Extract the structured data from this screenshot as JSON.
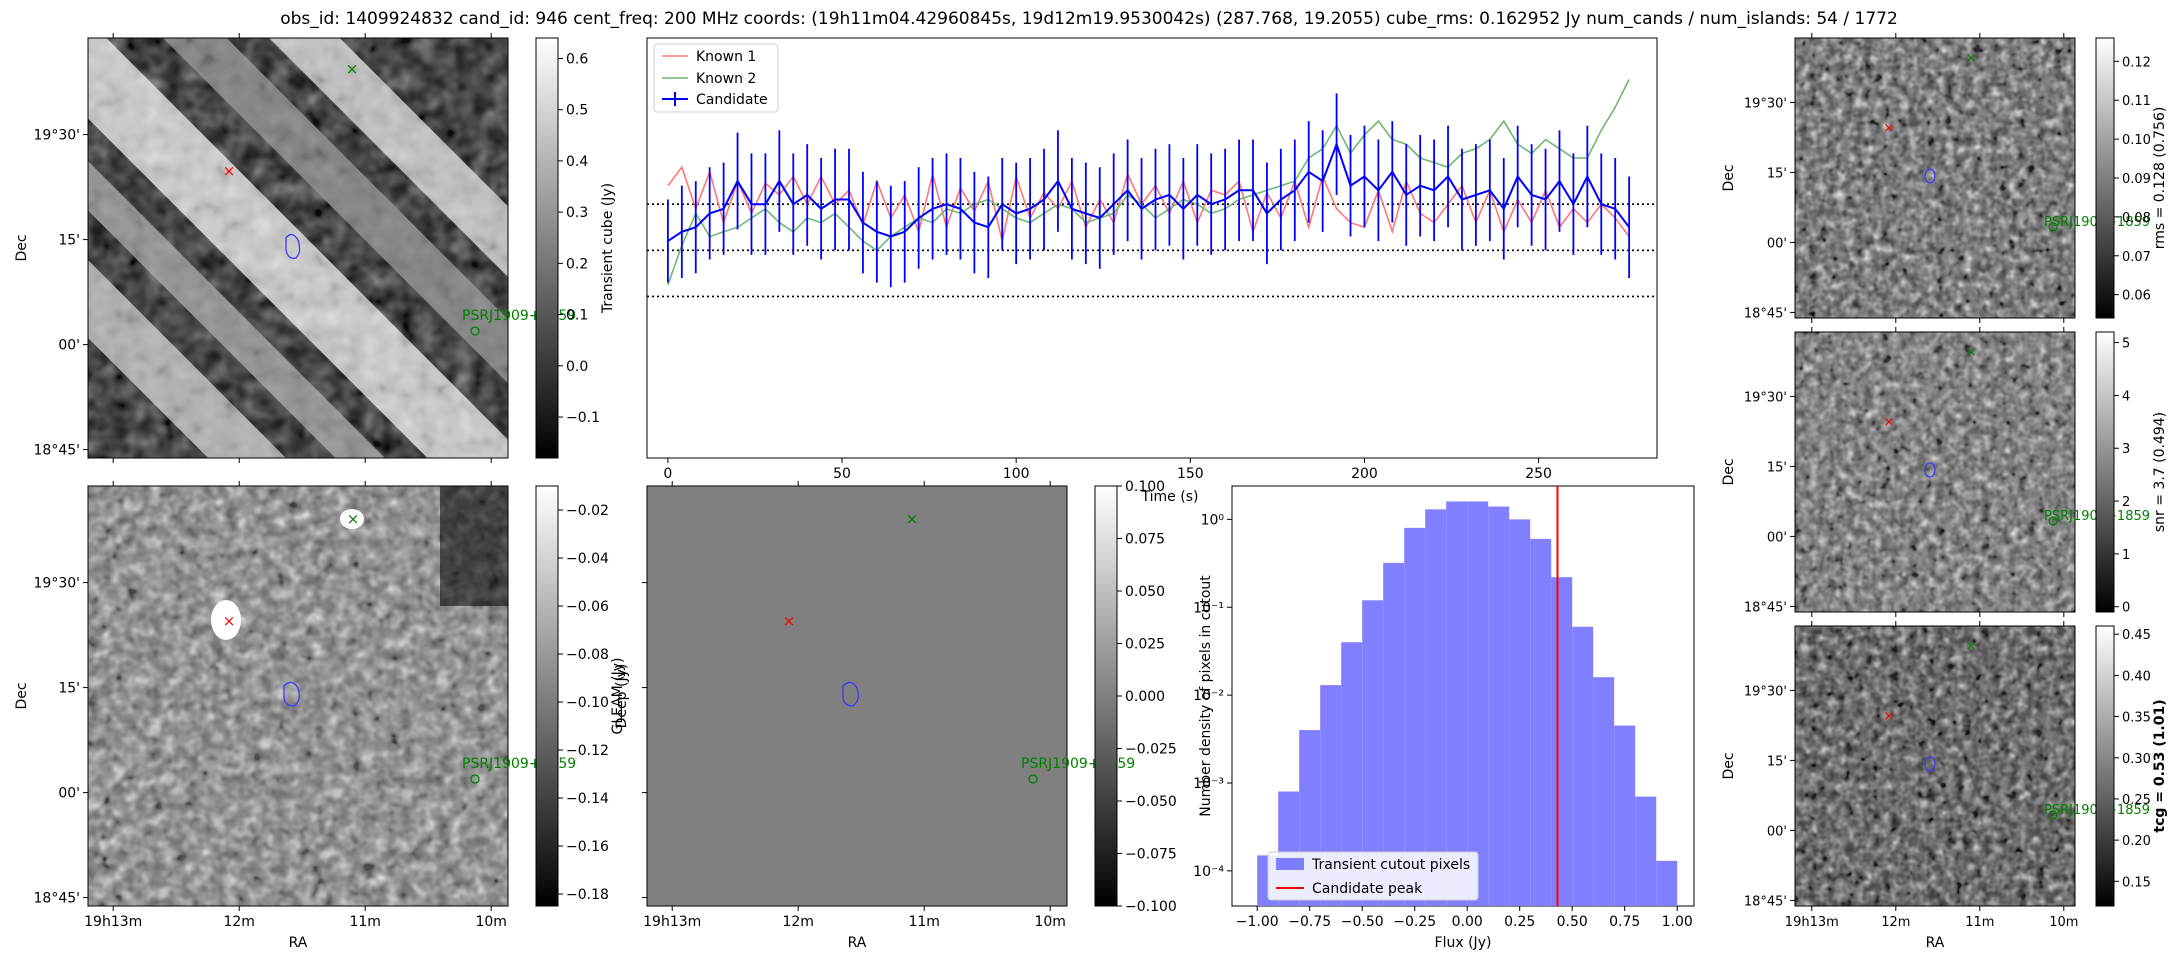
{
  "suptitle": "obs_id: 1409924832 cand_id: 946 cent_freq: 200 MHz coords: (19h11m04.42960845s, 19d12m19.9530042s) (287.768, 19.2055) cube_rms: 0.162952 Jy num_cands / num_islands: 54 / 1772",
  "colors": {
    "candidate": "#0000ff",
    "known1": "#ff7777",
    "known2": "#6fb86f",
    "red": "#ff0000",
    "green": "#008000",
    "hist": "#7f7fff"
  },
  "images": {
    "ra_ticks": [
      "19h13m",
      "12m",
      "11m",
      "10m"
    ],
    "dec_ticks": [
      "19°30'",
      "15'",
      "00'",
      "18°45'"
    ],
    "xlabel": "RA",
    "ylabel": "Dec",
    "source_label": "PSRJ1909+1859",
    "panel_transient": {
      "cbar_label": "Transient cube (Jy)",
      "cbar_range": [
        -0.18,
        0.64
      ],
      "cbar_ticks": [
        "0.6",
        "0.5",
        "0.4",
        "0.3",
        "0.2",
        "0.1",
        "0.0",
        "−0.1"
      ]
    },
    "panel_deep": {
      "cbar_label": "Deep (Jy)",
      "cbar_range": [
        -0.185,
        -0.01
      ],
      "cbar_ticks": [
        "−0.02",
        "−0.04",
        "−0.06",
        "−0.08",
        "−0.10",
        "−0.12",
        "−0.14",
        "−0.16",
        "−0.18"
      ]
    },
    "panel_gleam": {
      "cbar_label": "GLEAM (Jy)",
      "cbar_range": [
        -0.1,
        0.1
      ],
      "cbar_ticks": [
        "0.100",
        "0.075",
        "0.050",
        "0.025",
        "0.000",
        "−0.025",
        "−0.050",
        "−0.075",
        "−0.100"
      ]
    },
    "panel_rms": {
      "cbar_label": "rms = 0.128 (0.756)",
      "cbar_range": [
        0.054,
        0.126
      ],
      "cbar_ticks": [
        "0.12",
        "0.11",
        "0.10",
        "0.09",
        "0.08",
        "0.07",
        "0.06"
      ]
    },
    "panel_snr": {
      "cbar_label": "snr = 3.7 (0.494)",
      "cbar_range": [
        -0.1,
        5.2
      ],
      "cbar_ticks": [
        "5",
        "4",
        "3",
        "2",
        "1",
        "0"
      ]
    },
    "panel_tcg": {
      "cbar_label": "tcg = 0.53 (1.01)",
      "cbar_range": [
        0.12,
        0.46
      ],
      "cbar_ticks": [
        "0.45",
        "0.40",
        "0.35",
        "0.30",
        "0.25",
        "0.20",
        "0.15"
      ]
    }
  },
  "chart_data": [
    {
      "type": "line",
      "xlabel": "Time (s)",
      "ylabel": "",
      "xlim": [
        -6,
        284
      ],
      "ylim": [
        -0.9,
        0.92
      ],
      "x_ticks": [
        0,
        50,
        100,
        150,
        200,
        250
      ],
      "hlines": [
        0.2,
        0.0,
        -0.2
      ],
      "legend": [
        "Known 1",
        "Known 2",
        "Candidate"
      ],
      "x": [
        0,
        4,
        8,
        12,
        16,
        20,
        24,
        28,
        32,
        36,
        40,
        44,
        48,
        52,
        56,
        60,
        64,
        68,
        72,
        76,
        80,
        84,
        88,
        92,
        96,
        100,
        104,
        108,
        112,
        116,
        120,
        124,
        128,
        132,
        136,
        140,
        144,
        148,
        152,
        156,
        160,
        164,
        168,
        172,
        176,
        180,
        184,
        188,
        192,
        196,
        200,
        204,
        208,
        212,
        216,
        220,
        224,
        228,
        232,
        236,
        240,
        244,
        248,
        252,
        256,
        260,
        264,
        268,
        272,
        276
      ],
      "series": [
        {
          "name": "Known 1",
          "values": [
            0.28,
            0.36,
            0.18,
            0.34,
            0.12,
            0.3,
            0.16,
            0.29,
            0.24,
            0.32,
            0.2,
            0.32,
            0.2,
            0.26,
            0.11,
            0.3,
            0.14,
            0.24,
            0.08,
            0.33,
            0.1,
            0.27,
            0.17,
            0.3,
            0.04,
            0.32,
            0.14,
            0.25,
            0.18,
            0.3,
            0.1,
            0.22,
            0.12,
            0.33,
            0.2,
            0.28,
            0.16,
            0.3,
            0.12,
            0.26,
            0.24,
            0.3,
            0.08,
            0.25,
            0.14,
            0.3,
            0.1,
            0.32,
            0.18,
            0.12,
            0.1,
            0.26,
            0.08,
            0.3,
            0.16,
            0.12,
            0.2,
            0.28,
            0.12,
            0.26,
            0.08,
            0.22,
            0.12,
            0.26,
            0.1,
            0.18,
            0.12,
            0.2,
            0.14,
            0.06
          ]
        },
        {
          "name": "Known 2",
          "values": [
            -0.15,
            0.02,
            0.16,
            0.06,
            0.08,
            0.1,
            0.14,
            0.18,
            0.12,
            0.08,
            0.14,
            0.12,
            0.16,
            0.1,
            0.04,
            0.0,
            0.06,
            0.1,
            0.14,
            0.12,
            0.18,
            0.16,
            0.2,
            0.22,
            0.18,
            0.14,
            0.12,
            0.16,
            0.2,
            0.18,
            0.12,
            0.14,
            0.16,
            0.24,
            0.2,
            0.14,
            0.18,
            0.22,
            0.2,
            0.16,
            0.18,
            0.22,
            0.24,
            0.26,
            0.28,
            0.3,
            0.4,
            0.44,
            0.54,
            0.42,
            0.5,
            0.56,
            0.48,
            0.46,
            0.4,
            0.38,
            0.36,
            0.42,
            0.44,
            0.48,
            0.56,
            0.46,
            0.42,
            0.48,
            0.44,
            0.4,
            0.4,
            0.52,
            0.62,
            0.74
          ]
        },
        {
          "name": "Candidate",
          "values": [
            0.04,
            0.08,
            0.1,
            0.16,
            0.18,
            0.3,
            0.2,
            0.2,
            0.3,
            0.2,
            0.24,
            0.18,
            0.22,
            0.22,
            0.12,
            0.08,
            0.06,
            0.08,
            0.14,
            0.18,
            0.2,
            0.18,
            0.12,
            0.1,
            0.2,
            0.16,
            0.18,
            0.22,
            0.3,
            0.18,
            0.16,
            0.14,
            0.2,
            0.26,
            0.18,
            0.22,
            0.24,
            0.18,
            0.24,
            0.2,
            0.22,
            0.26,
            0.26,
            0.16,
            0.22,
            0.26,
            0.34,
            0.3,
            0.46,
            0.28,
            0.32,
            0.26,
            0.34,
            0.24,
            0.28,
            0.26,
            0.32,
            0.22,
            0.24,
            0.26,
            0.18,
            0.32,
            0.24,
            0.22,
            0.3,
            0.2,
            0.32,
            0.2,
            0.18,
            0.1
          ],
          "errors": [
            0.18,
            0.2,
            0.2,
            0.2,
            0.2,
            0.21,
            0.22,
            0.22,
            0.22,
            0.22,
            0.22,
            0.22,
            0.22,
            0.22,
            0.22,
            0.22,
            0.22,
            0.22,
            0.22,
            0.22,
            0.22,
            0.22,
            0.22,
            0.22,
            0.2,
            0.22,
            0.22,
            0.22,
            0.22,
            0.22,
            0.22,
            0.22,
            0.22,
            0.22,
            0.22,
            0.22,
            0.22,
            0.22,
            0.22,
            0.22,
            0.22,
            0.22,
            0.22,
            0.22,
            0.22,
            0.22,
            0.22,
            0.22,
            0.22,
            0.22,
            0.22,
            0.22,
            0.22,
            0.22,
            0.22,
            0.22,
            0.22,
            0.22,
            0.22,
            0.22,
            0.22,
            0.22,
            0.22,
            0.22,
            0.22,
            0.22,
            0.22,
            0.22,
            0.22,
            0.22
          ]
        }
      ]
    },
    {
      "type": "bar",
      "title": "",
      "xlabel": "Flux (Jy)",
      "ylabel": "Number density of pixels in cutout",
      "xlim": [
        -1.12,
        1.08
      ],
      "ylim_log10": [
        -4.4,
        0.38
      ],
      "x_ticks": [
        "−1.00",
        "−0.75",
        "−0.50",
        "−0.25",
        "0.00",
        "0.25",
        "0.50",
        "0.75",
        "1.00"
      ],
      "y_ticks": [
        "10⁰",
        "10⁻¹",
        "10⁻²",
        "10⁻³",
        "10⁻⁴"
      ],
      "bin_edges": [
        -1.0,
        -0.9,
        -0.8,
        -0.7,
        -0.6,
        -0.5,
        -0.4,
        -0.3,
        -0.2,
        -0.1,
        0.0,
        0.1,
        0.2,
        0.3,
        0.4,
        0.5,
        0.6,
        0.7,
        0.8,
        0.9,
        1.0
      ],
      "values": [
        0.00015,
        0.0008,
        0.004,
        0.013,
        0.04,
        0.12,
        0.32,
        0.8,
        1.3,
        1.6,
        1.6,
        1.4,
        1.0,
        0.6,
        0.22,
        0.06,
        0.016,
        0.0045,
        0.0007,
        0.00013
      ],
      "candidate_peak": 0.43,
      "legend": [
        "Transient cutout pixels",
        "Candidate peak"
      ]
    }
  ]
}
